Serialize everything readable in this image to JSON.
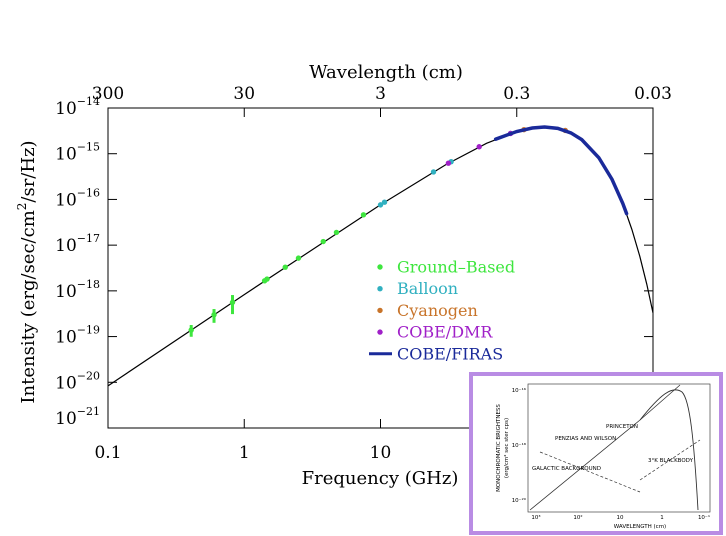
{
  "chart_data": {
    "type": "scatter",
    "x_label": "Frequency (GHz)",
    "x2_label": "Wavelength (cm)",
    "y_label": [
      "Intensity (erg/sec/cm",
      "2",
      "/sr/Hz)"
    ],
    "xlim": [
      0.1,
      1000
    ],
    "xscale": "log",
    "xticks": [
      0.1,
      1,
      10
    ],
    "x2lim": [
      300,
      0.03
    ],
    "x2scale": "log",
    "x2ticks": [
      300,
      30,
      3,
      0.3,
      0.03
    ],
    "ylim": [
      1e-21,
      1e-14
    ],
    "yscale": "log",
    "yticks": [
      {
        "value": 1e-14,
        "label": "10",
        "exponent": "−14"
      },
      {
        "value": 1e-15,
        "label": "10",
        "exponent": "−15"
      },
      {
        "value": 1e-16,
        "label": "10",
        "exponent": "−16"
      },
      {
        "value": 1e-17,
        "label": "10",
        "exponent": "−17"
      },
      {
        "value": 1e-18,
        "label": "10",
        "exponent": "−18"
      },
      {
        "value": 1e-19,
        "label": "10",
        "exponent": "−19"
      },
      {
        "value": 1e-20,
        "label": "10",
        "exponent": "−20"
      },
      {
        "value": 1e-21,
        "label": "10",
        "exponent": "−21"
      }
    ],
    "curve": {
      "color": "#000000",
      "x": [
        0.1,
        1,
        10,
        30,
        60,
        100,
        130,
        160,
        200,
        250,
        300,
        400,
        500,
        600,
        700,
        800,
        900,
        1000
      ],
      "values": [
        8.35e-21,
        8.29e-19,
        7.65e-17,
        5.71e-16,
        1.69e-15,
        3.06e-15,
        3.65e-15,
        3.83e-15,
        3.59e-15,
        2.85e-15,
        2.03e-15,
        8.2e-16,
        2.76e-16,
        8.2e-17,
        2.2e-17,
        5.7e-18,
        1.4e-18,
        3.3e-19
      ]
    },
    "series": [
      {
        "name": "Ground–Based",
        "color": "#3ee63e",
        "mode": "markers",
        "x": [
          0.408,
          0.6,
          0.82,
          1.41,
          1.47,
          2.0,
          2.5,
          3.8,
          4.75,
          7.5
        ],
        "values": [
          1.39e-19,
          3e-19,
          5.6e-19,
          1.66e-18,
          1.81e-18,
          3.3e-18,
          5.2e-18,
          1.2e-17,
          1.9e-17,
          4.6e-17
        ],
        "errors": [
          4e-20,
          1e-19,
          2.5e-19,
          null,
          null,
          null,
          null,
          null,
          null,
          null
        ]
      },
      {
        "name": "Balloon",
        "color": "#30b0c0",
        "mode": "markers",
        "x": [
          10.0,
          10.7,
          24.5,
          33,
          90
        ],
        "values": [
          7.6e-17,
          8.7e-17,
          4e-16,
          6.7e-16,
          2.77e-15
        ]
      },
      {
        "name": "Cyanogen",
        "color": "#c8742a",
        "mode": "markers",
        "x": [
          113,
          227
        ],
        "values": [
          3.36e-15,
          3.23e-15
        ]
      },
      {
        "name": "COBE/DMR",
        "color": "#a020c8",
        "mode": "markers",
        "x": [
          31.5,
          53,
          90
        ],
        "values": [
          6.2e-16,
          1.42e-15,
          2.77e-15
        ]
      },
      {
        "name": "COBE/FIRAS",
        "color": "#1a2a9a",
        "mode": "line",
        "x": [
          70,
          100,
          130,
          160,
          200,
          250,
          300,
          400,
          500,
          600,
          640
        ],
        "values": [
          2.08e-15,
          3.06e-15,
          3.65e-15,
          3.83e-15,
          3.59e-15,
          2.85e-15,
          2.03e-15,
          8.2e-16,
          2.76e-16,
          8.2e-17,
          4.9e-17
        ]
      }
    ]
  },
  "inset": {
    "y_label": "MONOCHROMATIC BRIGHTNESS",
    "y_unit": "(erg/cm² sec ster cps)",
    "x_label": "WAVELENGTH (cm)",
    "x_ticks": [
      "10³",
      "10²",
      "10",
      "1",
      "10⁻¹"
    ],
    "y_ticks": [
      "10⁻¹⁶",
      "10⁻¹⁸",
      "10⁻²⁰"
    ],
    "annotations": [
      "PRINCETON",
      "PENZIAS AND WILSON",
      "GALACTIC BACKGROUND",
      "3°K BLACKBODY"
    ]
  }
}
